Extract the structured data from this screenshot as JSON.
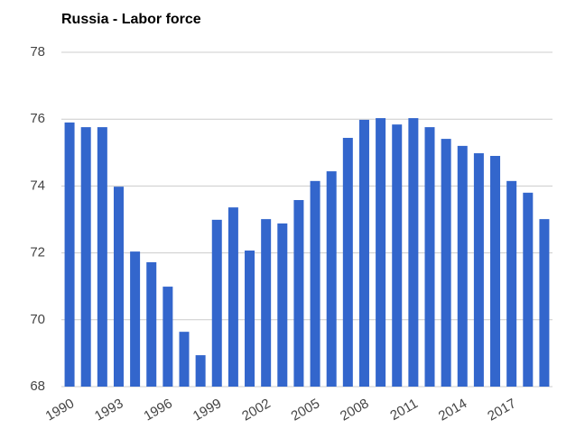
{
  "chart_data": {
    "type": "bar",
    "title": "Russia - Labor force",
    "categories": [
      "1990",
      null,
      null,
      "1993",
      null,
      null,
      "1996",
      null,
      null,
      "1999",
      null,
      null,
      "2002",
      null,
      null,
      "2005",
      null,
      null,
      "2008",
      null,
      null,
      "2011",
      null,
      null,
      "2014",
      null,
      null,
      "2017",
      null,
      null
    ],
    "values": [
      75.9,
      75.76,
      75.76,
      73.98,
      72.04,
      71.72,
      70.99,
      69.64,
      68.94,
      72.99,
      73.36,
      72.07,
      73.01,
      72.88,
      73.58,
      74.15,
      74.44,
      75.44,
      75.98,
      76.03,
      75.84,
      76.03,
      75.76,
      75.41,
      75.2,
      74.98,
      74.9,
      74.15,
      73.8,
      73.01
    ],
    "color": "#3366cc",
    "ylim": [
      68,
      78
    ],
    "yticks": [
      68,
      70,
      72,
      74,
      76,
      78
    ],
    "grid": true
  }
}
